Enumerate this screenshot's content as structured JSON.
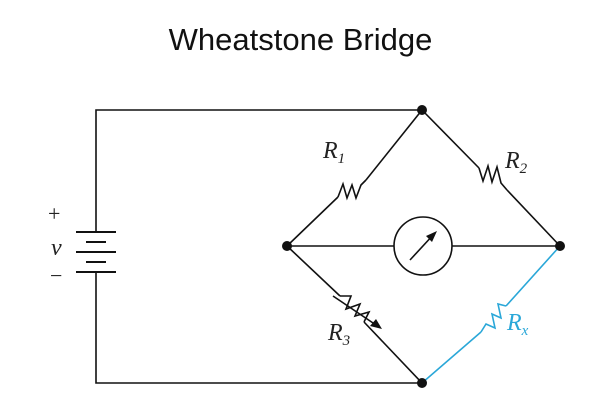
{
  "title": "Wheatstone Bridge",
  "colors": {
    "wire": "#111111",
    "highlight": "#2aa7d8"
  },
  "battery": {
    "plus": "+",
    "minus": "−",
    "voltage": "v"
  },
  "resistors": {
    "r1": {
      "letter": "R",
      "sub": "1"
    },
    "r2": {
      "letter": "R",
      "sub": "2"
    },
    "r3": {
      "letter": "R",
      "sub": "3"
    },
    "rx": {
      "letter": "R",
      "sub": "x"
    }
  },
  "meter": {
    "icon": "galvanometer-icon"
  }
}
